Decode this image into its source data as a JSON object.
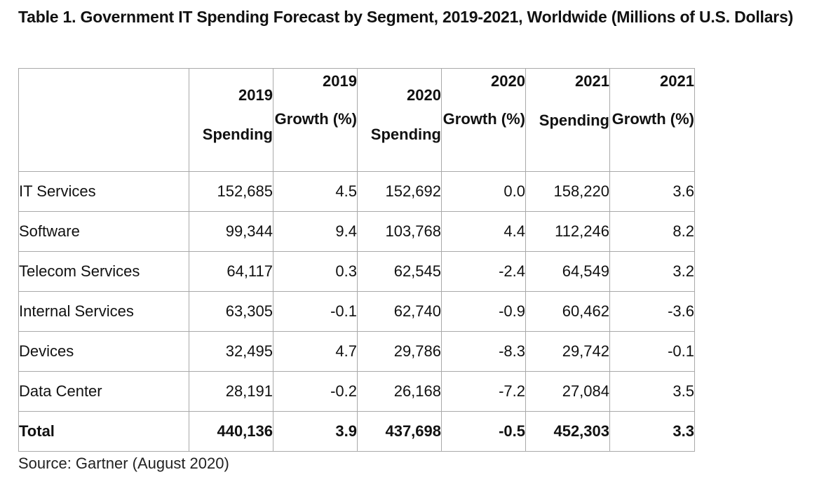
{
  "chart_data": {
    "type": "table",
    "title": "Table 1. Government IT Spending Forecast by Segment, 2019-2021, Worldwide (Millions of U.S. Dollars)",
    "columns": [
      {
        "year": "2019",
        "label": "Spending"
      },
      {
        "year": "2019",
        "label": "Growth (%)"
      },
      {
        "year": "2020",
        "label": "Spending"
      },
      {
        "year": "2020",
        "label": "Growth (%)"
      },
      {
        "year": "2021",
        "label": "Spending"
      },
      {
        "year": "2021",
        "label": "Growth (%)"
      }
    ],
    "rows": [
      {
        "segment": "IT Services",
        "values": [
          "152,685",
          "4.5",
          "152,692",
          "0.0",
          "158,220",
          "3.6"
        ]
      },
      {
        "segment": "Software",
        "values": [
          "99,344",
          "9.4",
          "103,768",
          "4.4",
          "112,246",
          "8.2"
        ]
      },
      {
        "segment": "Telecom Services",
        "values": [
          "64,117",
          "0.3",
          "62,545",
          "-2.4",
          "64,549",
          "3.2"
        ]
      },
      {
        "segment": "Internal Services",
        "values": [
          "63,305",
          "-0.1",
          "62,740",
          "-0.9",
          "60,462",
          "-3.6"
        ]
      },
      {
        "segment": "Devices",
        "values": [
          "32,495",
          "4.7",
          "29,786",
          "-8.3",
          "29,742",
          "-0.1"
        ]
      },
      {
        "segment": "Data Center",
        "values": [
          "28,191",
          "-0.2",
          "26,168",
          "-7.2",
          "27,084",
          "3.5"
        ]
      }
    ],
    "total": {
      "segment": "Total",
      "values": [
        "440,136",
        "3.9",
        "437,698",
        "-0.5",
        "452,303",
        "3.3"
      ]
    },
    "source": "Source: Gartner (August 2020)"
  },
  "colors": {
    "border": "#a9a9a9",
    "text": "#111111"
  }
}
